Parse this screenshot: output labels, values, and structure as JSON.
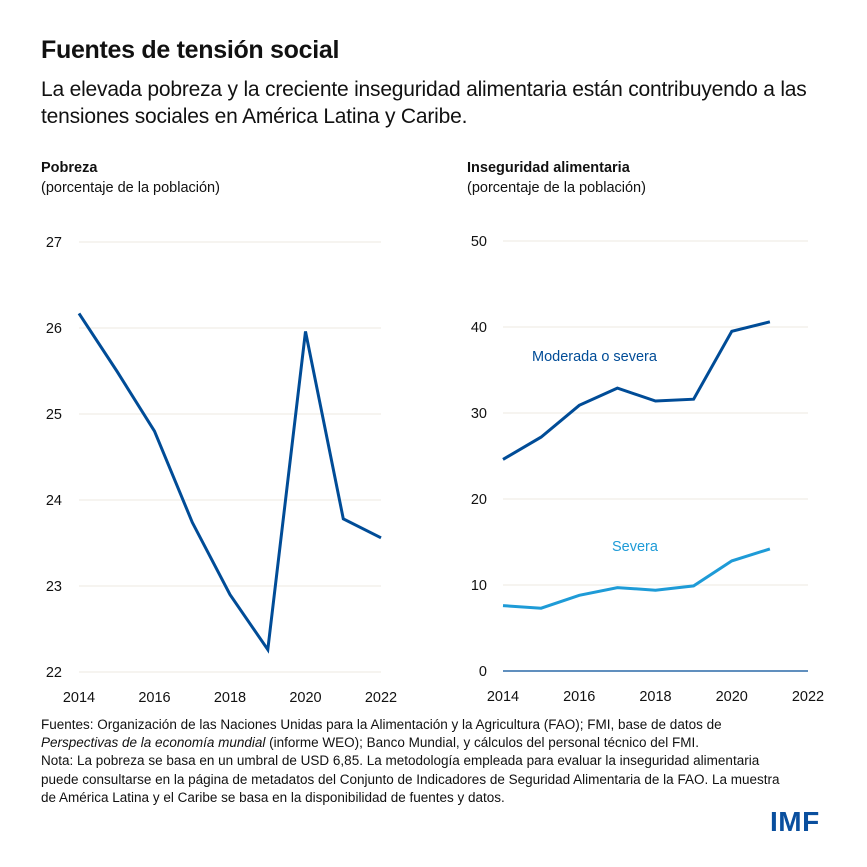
{
  "header": {
    "title": "Fuentes de tensión social",
    "subtitle": "La elevada pobreza y la creciente inseguridad alimentaria están contribuyendo a las tensiones sociales en América Latina y Caribe."
  },
  "colors": {
    "dark_blue": "#004C97",
    "light_blue": "#1E9BD7",
    "grid": "#ECEAE0",
    "logo": "#0A4F9E"
  },
  "chart_data": [
    {
      "type": "line",
      "title": "Pobreza",
      "ylabel": "(porcentaje de la población)",
      "xlabel": "",
      "x_ticks": [
        "2014",
        "2016",
        "2018",
        "2020",
        "2022"
      ],
      "y_ticks": [
        "22",
        "23",
        "24",
        "25",
        "26",
        "27"
      ],
      "xlim": [
        2014,
        2022
      ],
      "ylim": [
        22,
        27
      ],
      "grid": true,
      "series": [
        {
          "name": "Pobreza",
          "color": "#004C97",
          "x": [
            2014,
            2015,
            2016,
            2017,
            2018,
            2019,
            2020,
            2021,
            2022
          ],
          "values": [
            26.17,
            25.5,
            24.8,
            23.74,
            22.9,
            22.26,
            25.96,
            23.78,
            23.56
          ]
        }
      ]
    },
    {
      "type": "line",
      "title": "Inseguridad alimentaria",
      "ylabel": "(porcentaje de la población)",
      "xlabel": "",
      "x_ticks": [
        "2014",
        "2016",
        "2018",
        "2020",
        "2022"
      ],
      "y_ticks": [
        "0",
        "10",
        "20",
        "30",
        "40",
        "50"
      ],
      "xlim": [
        2014,
        2022
      ],
      "ylim": [
        0,
        50
      ],
      "grid": true,
      "series": [
        {
          "name": "Moderada o severa",
          "color": "#004C97",
          "x": [
            2014,
            2015,
            2016,
            2017,
            2018,
            2019,
            2020,
            2021
          ],
          "values": [
            24.6,
            27.2,
            30.9,
            32.9,
            31.4,
            31.6,
            39.5,
            40.6
          ]
        },
        {
          "name": "Severa",
          "color": "#1E9BD7",
          "x": [
            2014,
            2015,
            2016,
            2017,
            2018,
            2019,
            2020,
            2021
          ],
          "values": [
            7.6,
            7.3,
            8.8,
            9.7,
            9.4,
            9.9,
            12.8,
            14.2
          ]
        }
      ]
    }
  ],
  "footer": {
    "sources_prefix": "Fuentes: Organización de las Naciones Unidas para la Alimentación y la Agricultura (FAO); FMI, base de datos de ",
    "sources_italic": "Perspectivas de la economía mundial",
    "sources_suffix": " (informe WEO); Banco Mundial, y cálculos del personal técnico del FMI.",
    "note": "Nota: La pobreza se basa en un umbral de USD 6,85. La metodología empleada para evaluar la inseguridad alimentaria puede consultarse en la página de metadatos del Conjunto de Indicadores de Seguridad Alimentaria de la FAO. La muestra de América Latina y el Caribe se basa en la disponibilidad de fuentes y datos."
  },
  "logo": {
    "text": "IMF"
  }
}
